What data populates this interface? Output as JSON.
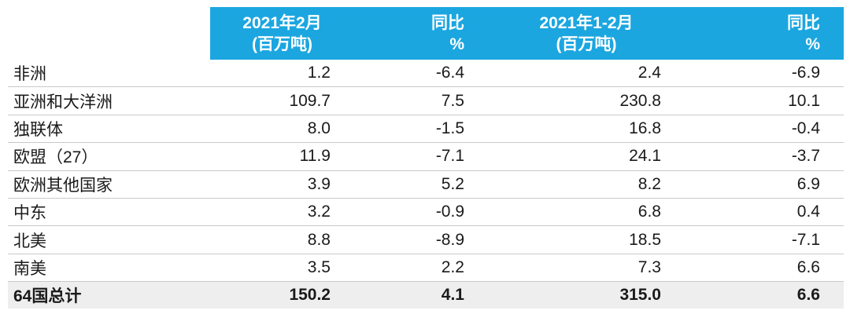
{
  "colors": {
    "header_bg": "#1BA6E0",
    "header_text": "#FFFFFF",
    "total_bg": "#EEEEEE",
    "divider": "#C9C9C9",
    "text": "#1A1A1A"
  },
  "chart_data": {
    "type": "table",
    "description_note": "",
    "column_headers": [
      {
        "line1": "2021年2月",
        "line2": "(百万吨)"
      },
      {
        "line1": "同比",
        "line2": "%"
      },
      {
        "line1": "2021年1-2月",
        "line2": "(百万吨)"
      },
      {
        "line1": "同比",
        "line2": "%"
      }
    ],
    "rows": [
      {
        "region": "非洲",
        "values": [
          "1.2",
          "-6.4",
          "2.4",
          "-6.9"
        ]
      },
      {
        "region": "亚洲和大洋洲",
        "values": [
          "109.7",
          "7.5",
          "230.8",
          "10.1"
        ]
      },
      {
        "region": "独联体",
        "values": [
          "8.0",
          "-1.5",
          "16.8",
          "-0.4"
        ]
      },
      {
        "region": "欧盟（27）",
        "values": [
          "11.9",
          "-7.1",
          "24.1",
          "-3.7"
        ]
      },
      {
        "region": "欧洲其他国家",
        "values": [
          "3.9",
          "5.2",
          "8.2",
          "6.9"
        ]
      },
      {
        "region": "中东",
        "values": [
          "3.2",
          "-0.9",
          "6.8",
          "0.4"
        ]
      },
      {
        "region": "北美",
        "values": [
          "8.8",
          "-8.9",
          "18.5",
          "-7.1"
        ]
      },
      {
        "region": "南美",
        "values": [
          "3.5",
          "2.2",
          "7.3",
          "6.6"
        ]
      }
    ],
    "total_row": {
      "region": "64国总计",
      "values": [
        "150.2",
        "4.1",
        "315.0",
        "6.6"
      ]
    }
  }
}
